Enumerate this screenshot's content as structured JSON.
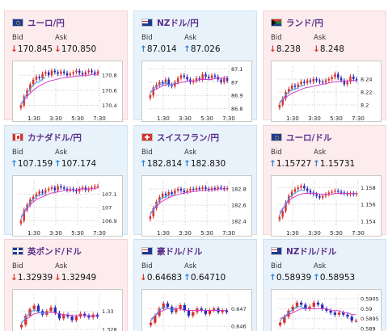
{
  "colors": {
    "pink_card": "#fcecee",
    "blue_card": "#e8f2fb",
    "title": "#5a2e8a",
    "up_candle": "#d8322c",
    "down_candle": "#2a2ab8",
    "ma_line": "#d040c8",
    "ma2_line": "#3aa0ff",
    "arrow_up": "#2a7fd4",
    "arrow_down": "#d8322c"
  },
  "labels": {
    "bid": "Bid",
    "ask": "Ask"
  },
  "cards": [
    {
      "pair": "ユーロ/円",
      "flag": "flag-eu-icon",
      "theme": "pink",
      "bid_dir": "down",
      "bid": "170.845",
      "ask_dir": "down",
      "ask": "170.850",
      "chart_data": {
        "type": "candlestick",
        "x_ticks": [
          "1:30",
          "3:30",
          "5:30",
          "7:30"
        ],
        "y_ticks": [
          "170.8",
          "170.6",
          "170.4"
        ],
        "y_range": [
          170.32,
          170.92
        ],
        "closes": [
          170.4,
          170.52,
          170.6,
          170.68,
          170.74,
          170.78,
          170.76,
          170.82,
          170.84,
          170.8,
          170.86,
          170.84,
          170.82,
          170.85,
          170.83,
          170.8,
          170.82,
          170.84,
          170.86,
          170.83,
          170.81,
          170.84,
          170.86,
          170.84,
          170.82,
          170.85
        ],
        "ma": [
          170.42,
          170.46,
          170.52,
          170.56,
          170.6,
          170.63,
          170.66,
          170.68,
          170.7,
          170.72,
          170.73,
          170.74,
          170.75,
          170.76,
          170.77,
          170.77,
          170.78,
          170.78,
          170.79,
          170.79,
          170.8,
          170.8,
          170.8,
          170.81,
          170.81,
          170.81
        ]
      }
    },
    {
      "pair": "NZドル/円",
      "flag": "flag-nz-icon",
      "theme": "blue",
      "bid_dir": "up",
      "bid": "87.014",
      "ask_dir": "up",
      "ask": "87.026",
      "chart_data": {
        "type": "candlestick",
        "x_ticks": [
          "1:30",
          "3:30",
          "5:30",
          "7:30"
        ],
        "y_ticks": [
          "87.1",
          "87",
          "86.9",
          "86.8"
        ],
        "y_range": [
          86.78,
          87.12
        ],
        "closes": [
          86.9,
          86.96,
          86.98,
          87.0,
          86.99,
          87.02,
          86.98,
          86.97,
          87.0,
          87.03,
          87.05,
          87.04,
          87.02,
          87.0,
          87.01,
          87.03,
          87.02,
          87.06,
          87.04,
          87.03,
          87.05,
          87.04,
          87.02,
          87.0,
          87.03,
          87.01
        ],
        "ma": [
          86.93,
          86.94,
          86.95,
          86.96,
          86.97,
          86.98,
          86.98,
          86.98,
          86.99,
          86.99,
          87.0,
          87.0,
          87.01,
          87.01,
          87.01,
          87.01,
          87.02,
          87.02,
          87.02,
          87.02,
          87.02,
          87.03,
          87.03,
          87.03,
          87.03,
          87.03
        ]
      }
    },
    {
      "pair": "ランド/円",
      "flag": "flag-za-icon",
      "theme": "pink",
      "bid_dir": "down",
      "bid": "8.238",
      "ask_dir": "down",
      "ask": "8.248",
      "chart_data": {
        "type": "candlestick",
        "x_ticks": [
          "1:30",
          "3:30",
          "5:30",
          "7:30"
        ],
        "y_ticks": [
          "8.24",
          "8.22",
          "8.2"
        ],
        "y_range": [
          8.19,
          8.26
        ],
        "closes": [
          8.2,
          8.21,
          8.22,
          8.225,
          8.23,
          8.228,
          8.232,
          8.236,
          8.234,
          8.238,
          8.236,
          8.24,
          8.238,
          8.236,
          8.235,
          8.238,
          8.24,
          8.243,
          8.248,
          8.242,
          8.238,
          8.232,
          8.236,
          8.244,
          8.24,
          8.238
        ],
        "ma": [
          8.205,
          8.208,
          8.212,
          8.215,
          8.218,
          8.22,
          8.222,
          8.224,
          8.226,
          8.227,
          8.228,
          8.229,
          8.23,
          8.231,
          8.232,
          8.233,
          8.234,
          8.235,
          8.236,
          8.236,
          8.237,
          8.237,
          8.237,
          8.238,
          8.238,
          8.238
        ]
      }
    },
    {
      "pair": "カナダドル/円",
      "flag": "flag-ca-icon",
      "theme": "blue",
      "bid_dir": "up",
      "bid": "107.159",
      "ask_dir": "up",
      "ask": "107.174",
      "chart_data": {
        "type": "candlestick",
        "x_ticks": [
          "1:30",
          "3:30",
          "5:30",
          "7:30"
        ],
        "y_ticks": [
          "107.1",
          "107",
          "106.9"
        ],
        "y_range": [
          106.86,
          107.2
        ],
        "closes": [
          106.9,
          106.98,
          107.02,
          107.06,
          107.08,
          107.1,
          107.12,
          107.11,
          107.13,
          107.14,
          107.15,
          107.13,
          107.16,
          107.15,
          107.14,
          107.13,
          107.14,
          107.13,
          107.12,
          107.14,
          107.15,
          107.13,
          107.14,
          107.15,
          107.16,
          107.16
        ],
        "ma": [
          106.93,
          106.96,
          106.99,
          107.02,
          107.04,
          107.06,
          107.07,
          107.08,
          107.09,
          107.1,
          107.11,
          107.11,
          107.12,
          107.12,
          107.13,
          107.13,
          107.13,
          107.13,
          107.13,
          107.14,
          107.14,
          107.14,
          107.14,
          107.14,
          107.14,
          107.15
        ]
      }
    },
    {
      "pair": "スイスフラン/円",
      "flag": "flag-ch-icon",
      "theme": "blue",
      "bid_dir": "up",
      "bid": "182.814",
      "ask_dir": "up",
      "ask": "182.830",
      "chart_data": {
        "type": "candlestick",
        "x_ticks": [
          "1:30",
          "3:30",
          "5:30",
          "7:30"
        ],
        "y_ticks": [
          "182.8",
          "182.6",
          "182.4"
        ],
        "y_range": [
          182.34,
          182.9
        ],
        "closes": [
          182.46,
          182.56,
          182.64,
          182.7,
          182.74,
          182.72,
          182.76,
          182.74,
          182.78,
          182.8,
          182.78,
          182.76,
          182.78,
          182.8,
          182.79,
          182.81,
          182.8,
          182.82,
          182.8,
          182.79,
          182.81,
          182.8,
          182.82,
          182.81,
          182.8,
          182.81
        ],
        "ma": [
          182.5,
          182.54,
          182.58,
          182.62,
          182.65,
          182.67,
          182.69,
          182.71,
          182.72,
          182.73,
          182.74,
          182.75,
          182.76,
          182.76,
          182.77,
          182.77,
          182.78,
          182.78,
          182.78,
          182.79,
          182.79,
          182.79,
          182.8,
          182.8,
          182.8,
          182.8
        ]
      }
    },
    {
      "pair": "ユーロ/ドル",
      "flag": "flag-eu-icon",
      "theme": "pink",
      "bid_dir": "up",
      "bid": "1.15727",
      "ask_dir": "up",
      "ask": "1.15731",
      "chart_data": {
        "type": "candlestick",
        "x_ticks": [
          "1:30",
          "3:30",
          "5:30",
          "7:30"
        ],
        "y_ticks": [
          "1.158",
          "1.156",
          "1.154"
        ],
        "y_range": [
          1.1534,
          1.1588
        ],
        "closes": [
          1.1545,
          1.1552,
          1.1562,
          1.157,
          1.1575,
          1.1578,
          1.158,
          1.1582,
          1.1579,
          1.1576,
          1.1574,
          1.1572,
          1.157,
          1.1568,
          1.157,
          1.1572,
          1.1574,
          1.1575,
          1.1576,
          1.1575,
          1.1574,
          1.1573,
          1.1572,
          1.1573,
          1.1572,
          1.1573
        ],
        "ma": [
          1.155,
          1.1555,
          1.156,
          1.1564,
          1.1567,
          1.1569,
          1.1571,
          1.1572,
          1.1573,
          1.1573,
          1.1573,
          1.1573,
          1.1573,
          1.1572,
          1.1572,
          1.1572,
          1.1572,
          1.1572,
          1.1573,
          1.1573,
          1.1573,
          1.1573,
          1.1573,
          1.1573,
          1.1573,
          1.1573
        ]
      }
    },
    {
      "pair": "英ポンド/ドル",
      "flag": "flag-uk-icon",
      "theme": "pink",
      "bid_dir": "down",
      "bid": "1.32939",
      "ask_dir": "down",
      "ask": "1.32949",
      "chart_data": {
        "type": "candlestick",
        "x_ticks": [],
        "y_ticks": [
          "1.33",
          "1.328"
        ],
        "y_range": [
          1.3272,
          1.3318
        ],
        "closes": [
          1.3285,
          1.3295,
          1.3302,
          1.3306,
          1.33,
          1.3296,
          1.33,
          1.3304,
          1.3298,
          1.3292,
          1.3296,
          1.3294,
          1.329,
          1.3294,
          1.3297,
          1.3295,
          1.3293,
          1.3296,
          1.3294
        ],
        "ma": [
          1.3288,
          1.3291,
          1.3294,
          1.3297,
          1.3298,
          1.3298,
          1.3298,
          1.3299,
          1.3298,
          1.3297,
          1.3296,
          1.3296,
          1.3295,
          1.3295,
          1.3295,
          1.3295,
          1.3295,
          1.3295,
          1.3295
        ]
      }
    },
    {
      "pair": "豪ドル/ドル",
      "flag": "flag-au-icon",
      "theme": "blue",
      "bid_dir": "down",
      "bid": "0.64683",
      "ask_dir": "up",
      "ask": "0.64710",
      "chart_data": {
        "type": "candlestick",
        "x_ticks": [],
        "y_ticks": [
          "0.647",
          "0.646"
        ],
        "y_range": [
          0.6454,
          0.6478
        ],
        "closes": [
          0.6462,
          0.6466,
          0.647,
          0.6473,
          0.6471,
          0.6468,
          0.647,
          0.6472,
          0.6469,
          0.6466,
          0.6468,
          0.647,
          0.6469,
          0.6467,
          0.6469,
          0.647,
          0.6468,
          0.6469,
          0.6468
        ],
        "ma": [
          0.6464,
          0.6466,
          0.6468,
          0.6469,
          0.647,
          0.647,
          0.647,
          0.647,
          0.6469,
          0.6469,
          0.6469,
          0.6469,
          0.6469,
          0.6469,
          0.6469,
          0.6469,
          0.6469,
          0.6469,
          0.6469
        ]
      }
    },
    {
      "pair": "NZドル/ドル",
      "flag": "flag-nz-icon",
      "theme": "blue",
      "bid_dir": "up",
      "bid": "0.58939",
      "ask_dir": "up",
      "ask": "0.58953",
      "chart_data": {
        "type": "candlestick",
        "x_ticks": [],
        "y_ticks": [
          "0.5905",
          "0.59",
          "0.5895",
          "0.589"
        ],
        "y_range": [
          0.5886,
          0.5907
        ],
        "closes": [
          0.5893,
          0.5896,
          0.5899,
          0.5901,
          0.5903,
          0.5902,
          0.59,
          0.5901,
          0.5903,
          0.5902,
          0.59,
          0.5899,
          0.5898,
          0.5897,
          0.5898,
          0.5897,
          0.5896,
          0.5894,
          0.5894
        ],
        "ma": [
          0.5895,
          0.5896,
          0.5897,
          0.5898,
          0.5899,
          0.59,
          0.59,
          0.59,
          0.59,
          0.59,
          0.59,
          0.59,
          0.5899,
          0.5899,
          0.5899,
          0.5898,
          0.5898,
          0.5897,
          0.5897
        ]
      }
    }
  ]
}
